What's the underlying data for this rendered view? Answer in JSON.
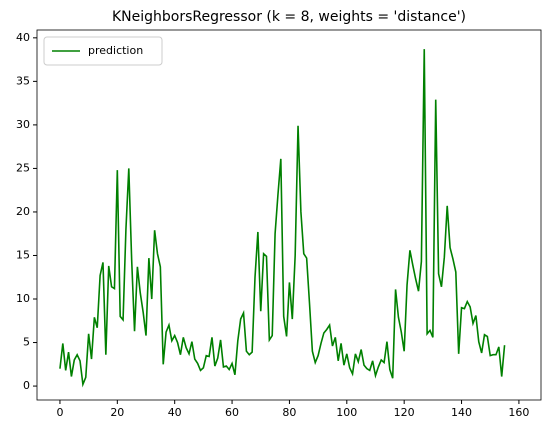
{
  "chart_data": {
    "type": "line",
    "title": "KNeighborsRegressor (k = 8, weights = 'distance')",
    "x": [
      0,
      1,
      2,
      3,
      4,
      5,
      6,
      7,
      8,
      9,
      10,
      11,
      12,
      13,
      14,
      15,
      16,
      17,
      18,
      19,
      20,
      21,
      22,
      23,
      24,
      25,
      26,
      27,
      28,
      29,
      30,
      31,
      32,
      33,
      34,
      35,
      36,
      37,
      38,
      39,
      40,
      41,
      42,
      43,
      44,
      45,
      46,
      47,
      48,
      49,
      50,
      51,
      52,
      53,
      54,
      55,
      56,
      57,
      58,
      59,
      60,
      61,
      62,
      63,
      64,
      65,
      66,
      67,
      68,
      69,
      70,
      71,
      72,
      73,
      74,
      75,
      76,
      77,
      78,
      79,
      80,
      81,
      82,
      83,
      84,
      85,
      86,
      87,
      88,
      89,
      90,
      91,
      92,
      93,
      94,
      95,
      96,
      97,
      98,
      99,
      100,
      101,
      102,
      103,
      104,
      105,
      106,
      107,
      108,
      109,
      110,
      111,
      112,
      113,
      114,
      115,
      116,
      117,
      118,
      119,
      120,
      121,
      122,
      123,
      124,
      125,
      126,
      127,
      128,
      129,
      130,
      131,
      132,
      133,
      134,
      135,
      136,
      137,
      138,
      139,
      140,
      141,
      142,
      143,
      144,
      145,
      146,
      147,
      148,
      149,
      150,
      151,
      152,
      153,
      154,
      155
    ],
    "series": [
      {
        "name": "prediction",
        "color": "#008000",
        "values": [
          2,
          4.9,
          1.8,
          3.9,
          1.1,
          3,
          3.6,
          2.9,
          0.2,
          1,
          6,
          3.1,
          7.9,
          6.7,
          12.7,
          14.2,
          3.6,
          13.8,
          11.4,
          11.2,
          24.8,
          8,
          7.6,
          18,
          25,
          14.5,
          6.3,
          13.7,
          10.7,
          8.5,
          5.8,
          14.7,
          10,
          17.9,
          15.2,
          13.7,
          2.5,
          6.2,
          7,
          5.2,
          5.8,
          5,
          3.6,
          5.6,
          4.4,
          3.7,
          5.1,
          3.1,
          2.6,
          1.8,
          2.1,
          3.5,
          3.4,
          5.6,
          2.3,
          3.2,
          5.3,
          2.2,
          2.3,
          1.9,
          2.6,
          1.3,
          5.2,
          7.7,
          8.4,
          4,
          3.6,
          3.9,
          12.5,
          17.7,
          8.6,
          15.2,
          14.9,
          5.3,
          5.8,
          17.5,
          22,
          26.1,
          8,
          5.7,
          11.9,
          7.7,
          15,
          29.9,
          20,
          15.2,
          14.7,
          9.5,
          4,
          2.7,
          3.5,
          4.9,
          6.1,
          6.5,
          7,
          4.6,
          5.6,
          2.9,
          4.9,
          2.4,
          3.7,
          2.1,
          1.4,
          3.7,
          2.8,
          4.2,
          2.4,
          2,
          1.8,
          2.9,
          1.2,
          2.2,
          3,
          2.7,
          5.1,
          1.9,
          0.9,
          11.1,
          7.9,
          6.2,
          4,
          11.6,
          15.6,
          13.9,
          12.3,
          10.9,
          14.3,
          38.7,
          6,
          6.4,
          5.6,
          32.9,
          12.9,
          11.4,
          14.8,
          20.7,
          15.9,
          14.6,
          13.1,
          3.7,
          9,
          8.9,
          9.7,
          9.1,
          7.2,
          8.1,
          5.1,
          3.8,
          5.9,
          5.7,
          3.5,
          3.6,
          3.6,
          4.5,
          1.1,
          4.7
        ]
      }
    ],
    "xlim": [
      -8,
      167.7
    ],
    "xticks": [
      0,
      20,
      40,
      60,
      80,
      100,
      120,
      140,
      160
    ],
    "ylim": [
      -1.6,
      40.9
    ],
    "yticks": [
      0,
      5,
      10,
      15,
      20,
      25,
      30,
      35,
      40
    ],
    "legend": "upper left"
  }
}
